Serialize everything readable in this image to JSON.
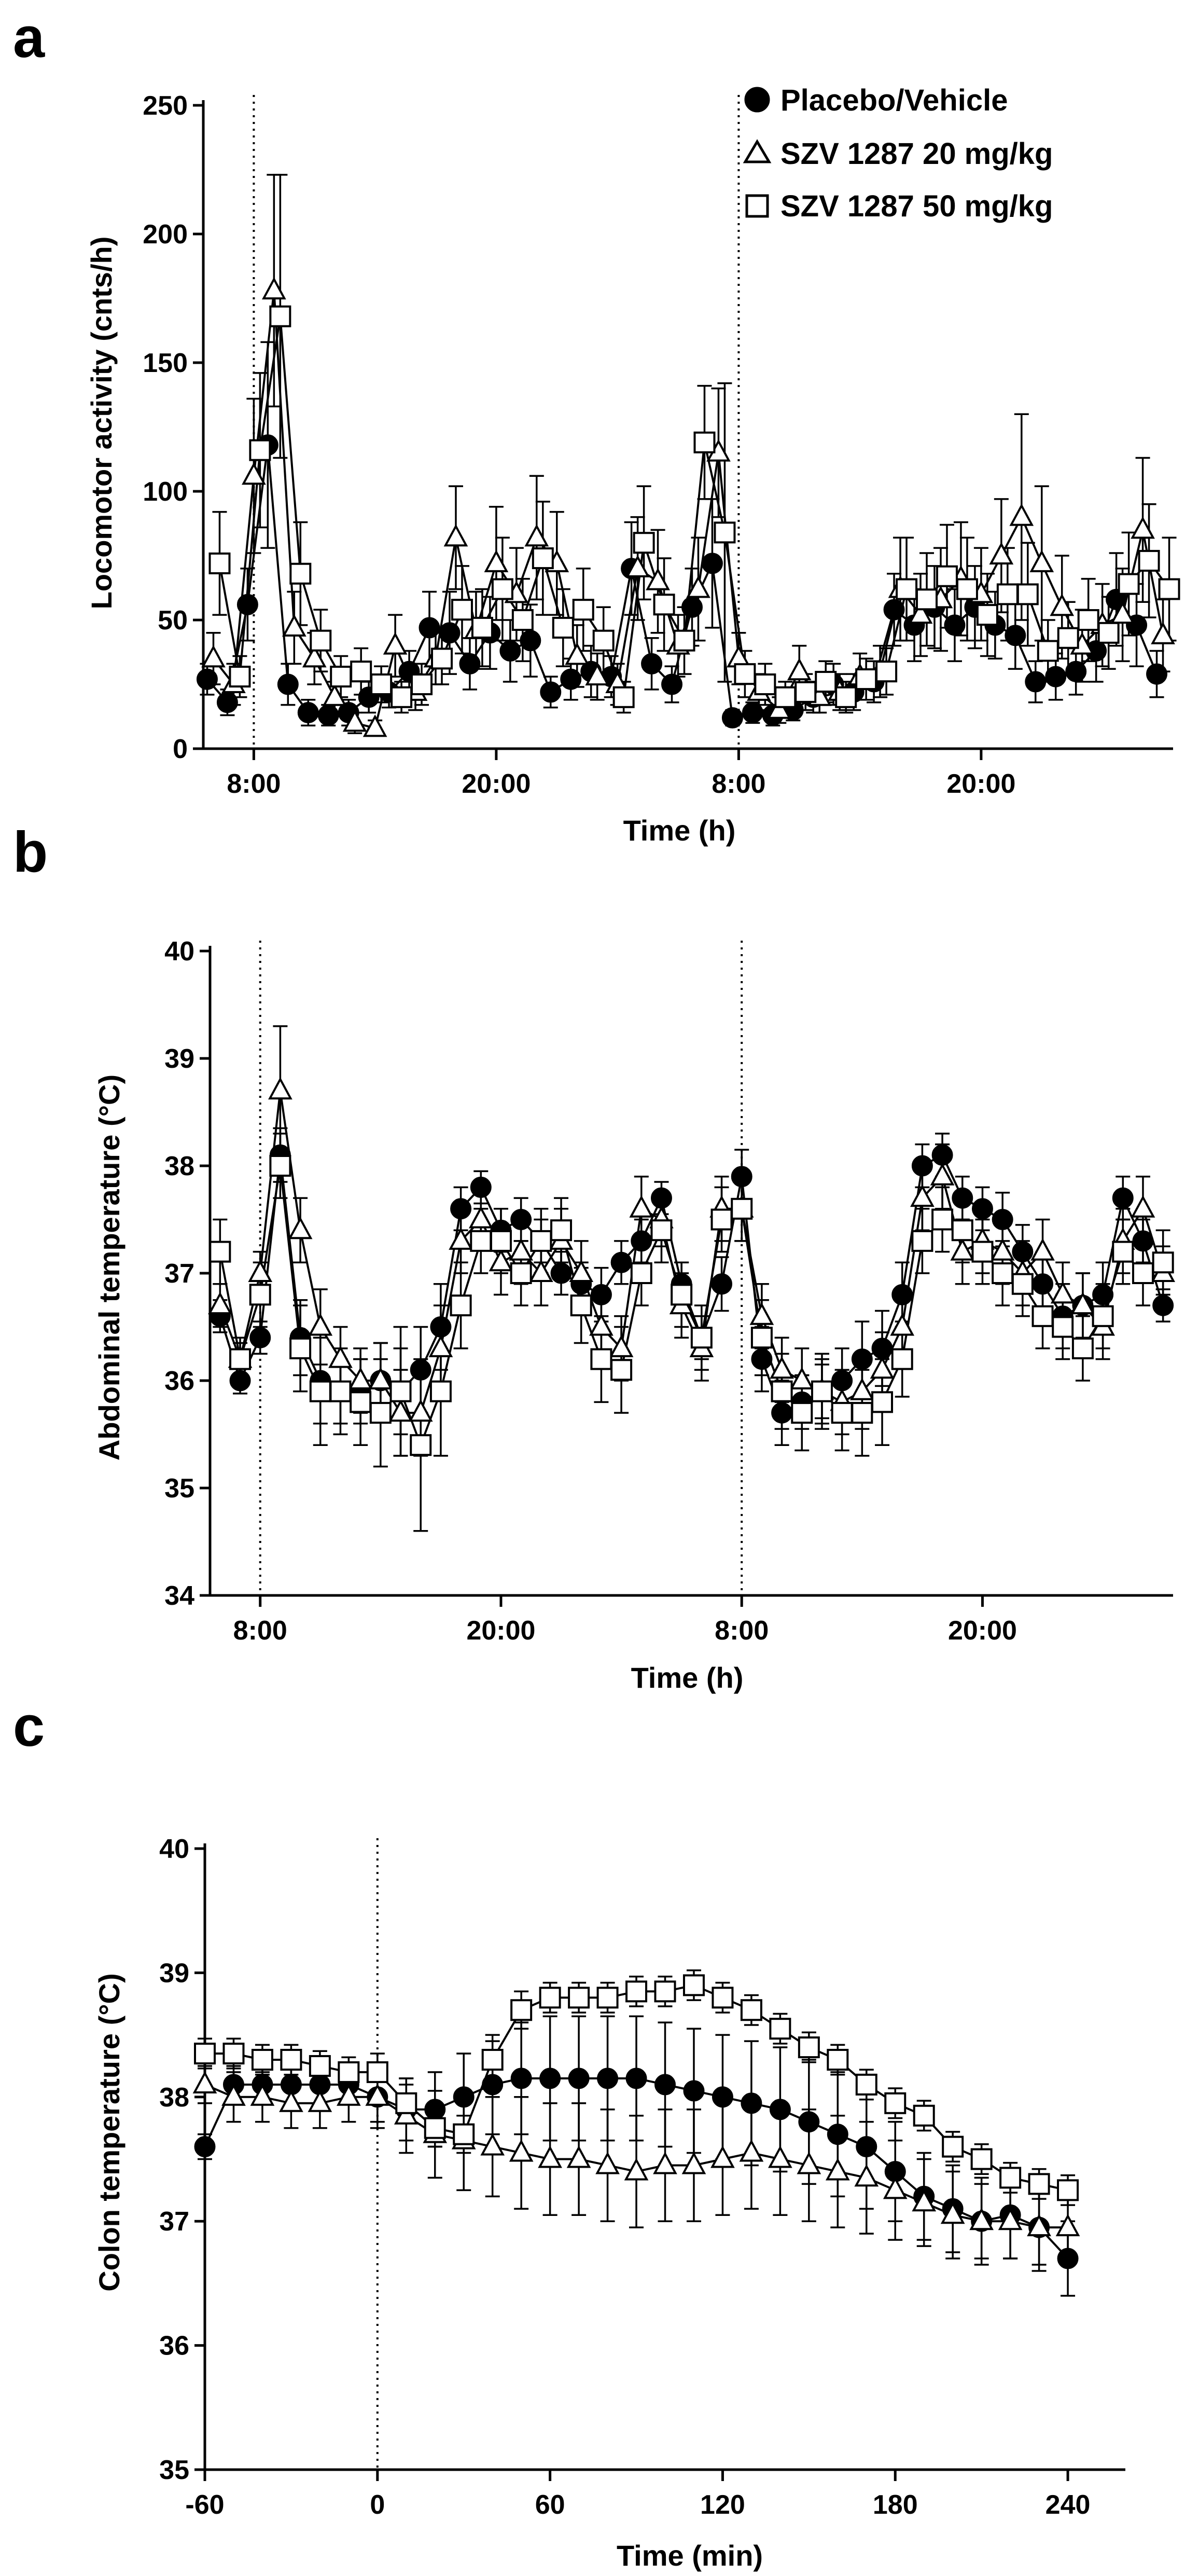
{
  "chart_data": [
    {
      "id": "a",
      "type": "line",
      "panel_letter": "a",
      "xlabel": "Time (h)",
      "ylabel": "Locomotor activity (cnts/h)",
      "x_range": [
        0,
        47
      ],
      "ylim": [
        0,
        250
      ],
      "yticks": [
        0,
        50,
        100,
        150,
        200,
        250
      ],
      "xtick_values": [
        2,
        14,
        26,
        38
      ],
      "xtick_labels": [
        "8:00",
        "20:00",
        "8:00",
        "20:00"
      ],
      "vlines": [
        2,
        26
      ],
      "grid": false,
      "legend": {
        "position": "top-right",
        "entries": [
          {
            "label": "Placebo/Vehicle",
            "marker": "circle"
          },
          {
            "label": "SZV 1287 20 mg/kg",
            "marker": "triangle"
          },
          {
            "label": "SZV 1287 50 mg/kg",
            "marker": "square"
          }
        ]
      },
      "x": [
        0,
        1,
        2,
        3,
        4,
        5,
        6,
        7,
        8,
        9,
        10,
        11,
        12,
        13,
        14,
        15,
        16,
        17,
        18,
        19,
        20,
        21,
        22,
        23,
        24,
        25,
        26,
        27,
        28,
        29,
        30,
        31,
        32,
        33,
        34,
        35,
        36,
        37,
        38,
        39,
        40,
        41,
        42,
        43,
        44,
        45,
        46,
        47
      ],
      "series": [
        {
          "name": "Placebo/Vehicle",
          "marker": "circle",
          "values": [
            27,
            18,
            56,
            118,
            25,
            14,
            13,
            14,
            20,
            22,
            30,
            47,
            45,
            33,
            45,
            38,
            42,
            22,
            27,
            30,
            28,
            70,
            33,
            25,
            55,
            72,
            12,
            14,
            13,
            15,
            20,
            25,
            22,
            26,
            54,
            48,
            55,
            48,
            55,
            48,
            44,
            26,
            28,
            30,
            38,
            58,
            48,
            29
          ],
          "errors": [
            6,
            5,
            14,
            40,
            8,
            5,
            4,
            5,
            6,
            6,
            8,
            14,
            16,
            10,
            14,
            12,
            14,
            6,
            8,
            10,
            8,
            18,
            10,
            7,
            15,
            25,
            3,
            4,
            4,
            4,
            6,
            8,
            7,
            8,
            14,
            14,
            16,
            14,
            16,
            13,
            13,
            8,
            9,
            9,
            12,
            18,
            16,
            9
          ]
        },
        {
          "name": "SZV 1287 20 mg/kg",
          "marker": "triangle",
          "values": [
            35,
            25,
            106,
            178,
            47,
            35,
            20,
            10,
            8,
            40,
            22,
            35,
            82,
            46,
            72,
            60,
            82,
            72,
            36,
            28,
            25,
            70,
            65,
            40,
            62,
            115,
            35,
            22,
            15,
            30,
            20,
            22,
            28,
            30,
            62,
            52,
            58,
            66,
            60,
            75,
            90,
            72,
            55,
            40,
            48,
            52,
            85,
            44
          ],
          "errors": [
            10,
            8,
            30,
            45,
            14,
            10,
            6,
            4,
            3,
            12,
            7,
            10,
            20,
            15,
            22,
            18,
            24,
            20,
            12,
            9,
            8,
            20,
            20,
            12,
            20,
            25,
            10,
            7,
            5,
            10,
            6,
            7,
            9,
            10,
            20,
            16,
            20,
            22,
            18,
            22,
            40,
            30,
            20,
            14,
            16,
            18,
            28,
            14
          ]
        },
        {
          "name": "SZV 1287 50 mg/kg",
          "marker": "square",
          "values": [
            72,
            28,
            116,
            168,
            68,
            42,
            28,
            30,
            25,
            20,
            25,
            35,
            54,
            47,
            62,
            50,
            74,
            47,
            54,
            42,
            20,
            80,
            56,
            42,
            119,
            84,
            29,
            25,
            20,
            22,
            26,
            20,
            27,
            30,
            62,
            58,
            67,
            62,
            52,
            60,
            60,
            38,
            43,
            50,
            45,
            64,
            73,
            62
          ],
          "errors": [
            20,
            8,
            30,
            55,
            20,
            12,
            8,
            9,
            7,
            6,
            8,
            10,
            17,
            15,
            20,
            16,
            22,
            15,
            16,
            13,
            6,
            22,
            18,
            13,
            22,
            58,
            9,
            8,
            6,
            7,
            8,
            6,
            8,
            9,
            20,
            18,
            20,
            20,
            16,
            18,
            20,
            12,
            14,
            16,
            14,
            20,
            22,
            20
          ]
        }
      ]
    },
    {
      "id": "b",
      "type": "line",
      "panel_letter": "b",
      "xlabel": "Time (h)",
      "ylabel": "Abdominal temperature (°C)",
      "x_range": [
        0,
        47
      ],
      "ylim": [
        34,
        40
      ],
      "yticks": [
        34,
        35,
        36,
        37,
        38,
        39,
        40
      ],
      "xtick_values": [
        2,
        14,
        26,
        38
      ],
      "xtick_labels": [
        "8:00",
        "20:00",
        "8:00",
        "20:00"
      ],
      "vlines": [
        2,
        26
      ],
      "grid": false,
      "x": [
        0,
        1,
        2,
        3,
        4,
        5,
        6,
        7,
        8,
        9,
        10,
        11,
        12,
        13,
        14,
        15,
        16,
        17,
        18,
        19,
        20,
        21,
        22,
        23,
        24,
        25,
        26,
        27,
        28,
        29,
        30,
        31,
        32,
        33,
        34,
        35,
        36,
        37,
        38,
        39,
        40,
        41,
        42,
        43,
        44,
        45,
        46,
        47
      ],
      "series": [
        {
          "name": "Placebo/Vehicle",
          "marker": "circle",
          "values": [
            36.6,
            36.0,
            36.4,
            38.1,
            36.4,
            36.0,
            35.9,
            35.9,
            36.0,
            35.9,
            36.1,
            36.5,
            37.6,
            37.8,
            37.4,
            37.5,
            37.3,
            37.0,
            36.9,
            36.8,
            37.1,
            37.3,
            37.7,
            36.9,
            36.4,
            36.9,
            37.9,
            36.2,
            35.7,
            35.8,
            35.9,
            36.0,
            36.2,
            36.3,
            36.8,
            38.0,
            38.1,
            37.7,
            37.6,
            37.5,
            37.2,
            36.9,
            36.6,
            36.7,
            36.8,
            37.7,
            37.3,
            36.7
          ],
          "errors": [
            0.15,
            0.12,
            0.15,
            0.25,
            0.35,
            0.4,
            0.3,
            0.3,
            0.35,
            0.4,
            0.4,
            0.4,
            0.2,
            0.15,
            0.2,
            0.2,
            0.2,
            0.2,
            0.2,
            0.25,
            0.2,
            0.2,
            0.15,
            0.2,
            0.2,
            0.25,
            0.25,
            0.3,
            0.3,
            0.25,
            0.25,
            0.3,
            0.35,
            0.35,
            0.3,
            0.2,
            0.2,
            0.2,
            0.2,
            0.25,
            0.25,
            0.3,
            0.3,
            0.3,
            0.3,
            0.2,
            0.2,
            0.15
          ]
        },
        {
          "name": "SZV 1287 20 mg/kg",
          "marker": "triangle",
          "values": [
            36.7,
            36.2,
            37.0,
            38.7,
            37.4,
            36.5,
            36.2,
            36.0,
            36.0,
            35.7,
            35.7,
            36.3,
            37.3,
            37.5,
            37.1,
            37.2,
            37.0,
            37.3,
            37.0,
            36.5,
            36.3,
            37.6,
            37.5,
            36.7,
            36.3,
            37.6,
            37.6,
            36.6,
            36.1,
            36.0,
            35.9,
            35.8,
            35.9,
            36.1,
            36.5,
            37.7,
            37.9,
            37.2,
            37.3,
            37.2,
            37.0,
            37.2,
            36.8,
            36.7,
            36.5,
            37.3,
            37.6,
            37.0
          ],
          "errors": [
            0.2,
            0.15,
            0.2,
            0.6,
            0.3,
            0.35,
            0.3,
            0.3,
            0.35,
            0.4,
            0.4,
            0.4,
            0.3,
            0.25,
            0.3,
            0.3,
            0.3,
            0.3,
            0.3,
            0.35,
            0.3,
            0.3,
            0.25,
            0.3,
            0.3,
            0.3,
            0.3,
            0.3,
            0.3,
            0.3,
            0.3,
            0.3,
            0.35,
            0.35,
            0.3,
            0.3,
            0.3,
            0.3,
            0.3,
            0.3,
            0.3,
            0.3,
            0.3,
            0.3,
            0.3,
            0.3,
            0.3,
            0.25
          ]
        },
        {
          "name": "SZV 1287 50 mg/kg",
          "marker": "square",
          "values": [
            37.2,
            36.2,
            36.8,
            38.0,
            36.3,
            35.9,
            35.9,
            35.8,
            35.7,
            35.9,
            35.4,
            35.9,
            36.7,
            37.3,
            37.3,
            37.0,
            37.3,
            37.4,
            36.7,
            36.2,
            36.1,
            37.0,
            37.4,
            36.8,
            36.4,
            37.5,
            37.6,
            36.4,
            35.9,
            35.7,
            35.9,
            35.7,
            35.7,
            35.8,
            36.2,
            37.3,
            37.5,
            37.4,
            37.2,
            37.0,
            36.9,
            36.6,
            36.5,
            36.3,
            36.6,
            37.2,
            37.0,
            37.1
          ],
          "errors": [
            0.3,
            0.2,
            0.3,
            0.3,
            0.4,
            0.5,
            0.4,
            0.4,
            0.5,
            0.6,
            0.8,
            0.6,
            0.4,
            0.3,
            0.3,
            0.3,
            0.3,
            0.3,
            0.35,
            0.4,
            0.4,
            0.3,
            0.3,
            0.3,
            0.3,
            0.3,
            0.3,
            0.35,
            0.35,
            0.35,
            0.35,
            0.35,
            0.4,
            0.4,
            0.35,
            0.3,
            0.3,
            0.3,
            0.3,
            0.3,
            0.3,
            0.3,
            0.3,
            0.3,
            0.3,
            0.3,
            0.3,
            0.3
          ]
        }
      ]
    },
    {
      "id": "c",
      "type": "line",
      "panel_letter": "c",
      "xlabel": "Time (min)",
      "ylabel": "Colon temperature (°C)",
      "xlim": [
        -60,
        260
      ],
      "ylim": [
        35,
        40
      ],
      "yticks": [
        35,
        36,
        37,
        38,
        39,
        40
      ],
      "xticks": [
        -60,
        0,
        60,
        120,
        180,
        240
      ],
      "xtick_labels": [
        "-60",
        "0",
        "60",
        "120",
        "180",
        "240"
      ],
      "vlines": [
        0
      ],
      "grid": false,
      "x": [
        -60,
        -50,
        -40,
        -30,
        -20,
        -10,
        0,
        10,
        20,
        30,
        40,
        50,
        60,
        70,
        80,
        90,
        100,
        110,
        120,
        130,
        140,
        150,
        160,
        170,
        180,
        190,
        200,
        210,
        220,
        230,
        240
      ],
      "series": [
        {
          "name": "Placebo/Vehicle",
          "marker": "circle",
          "values": [
            37.6,
            38.1,
            38.1,
            38.1,
            38.1,
            38.1,
            38.0,
            37.9,
            37.9,
            38.0,
            38.1,
            38.15,
            38.15,
            38.15,
            38.15,
            38.15,
            38.1,
            38.05,
            38.0,
            37.95,
            37.9,
            37.8,
            37.7,
            37.6,
            37.4,
            37.2,
            37.1,
            37.0,
            37.05,
            36.95,
            36.7
          ],
          "errors": [
            0.1,
            0.15,
            0.15,
            0.15,
            0.15,
            0.15,
            0.2,
            0.25,
            0.3,
            0.35,
            0.4,
            0.45,
            0.5,
            0.5,
            0.5,
            0.5,
            0.5,
            0.5,
            0.5,
            0.5,
            0.5,
            0.5,
            0.5,
            0.5,
            0.4,
            0.35,
            0.35,
            0.35,
            0.35,
            0.35,
            0.3
          ]
        },
        {
          "name": "SZV 1287 20 mg/kg",
          "marker": "triangle",
          "values": [
            38.1,
            38.0,
            38.0,
            37.95,
            37.95,
            38.0,
            38.0,
            37.85,
            37.7,
            37.65,
            37.6,
            37.55,
            37.5,
            37.5,
            37.45,
            37.4,
            37.45,
            37.45,
            37.5,
            37.55,
            37.5,
            37.45,
            37.4,
            37.35,
            37.25,
            37.15,
            37.05,
            37.0,
            37.0,
            36.95,
            36.95
          ],
          "errors": [
            0.15,
            0.2,
            0.2,
            0.2,
            0.2,
            0.2,
            0.25,
            0.3,
            0.35,
            0.4,
            0.4,
            0.45,
            0.45,
            0.45,
            0.45,
            0.45,
            0.45,
            0.45,
            0.45,
            0.45,
            0.45,
            0.45,
            0.45,
            0.45,
            0.4,
            0.35,
            0.35,
            0.3,
            0.3,
            0.3,
            0.3
          ]
        },
        {
          "name": "SZV 1287 50 mg/kg",
          "marker": "square",
          "values": [
            38.35,
            38.35,
            38.3,
            38.3,
            38.25,
            38.2,
            38.2,
            37.95,
            37.75,
            37.7,
            38.3,
            38.7,
            38.8,
            38.8,
            38.8,
            38.85,
            38.85,
            38.9,
            38.8,
            38.7,
            38.55,
            38.4,
            38.3,
            38.1,
            37.95,
            37.85,
            37.6,
            37.5,
            37.35,
            37.3,
            37.25
          ],
          "errors": [
            0.12,
            0.12,
            0.12,
            0.12,
            0.12,
            0.12,
            0.15,
            0.15,
            0.15,
            0.15,
            0.15,
            0.15,
            0.12,
            0.12,
            0.12,
            0.12,
            0.12,
            0.12,
            0.12,
            0.12,
            0.12,
            0.12,
            0.12,
            0.12,
            0.12,
            0.12,
            0.12,
            0.12,
            0.12,
            0.12,
            0.12
          ]
        }
      ]
    }
  ]
}
